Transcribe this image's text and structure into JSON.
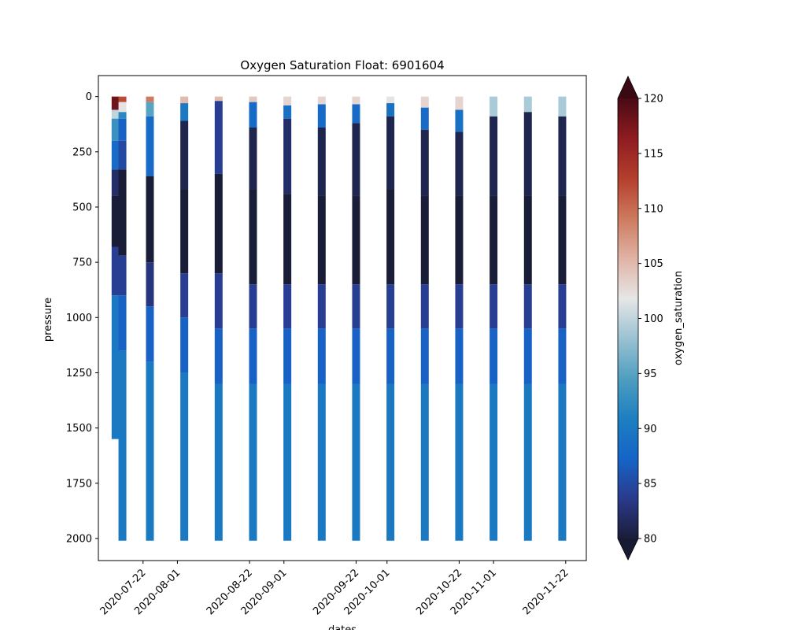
{
  "chart_data": {
    "type": "scatter",
    "title": "Oxygen Saturation Float: 6901604",
    "xlabel": "dates",
    "ylabel": "pressure",
    "x_tick_labels": [
      "2020-07-22",
      "2020-08-01",
      "2020-08-22",
      "2020-09-01",
      "2020-09-22",
      "2020-10-01",
      "2020-10-22",
      "2020-11-01",
      "2020-11-22"
    ],
    "x_tick_dates": [
      "2020-07-22",
      "2020-08-01",
      "2020-08-22",
      "2020-09-01",
      "2020-09-22",
      "2020-10-01",
      "2020-10-22",
      "2020-11-01",
      "2020-11-22"
    ],
    "xlim": [
      "2020-07-09",
      "2020-11-28"
    ],
    "y_tick_labels": [
      "0",
      "250",
      "500",
      "750",
      "1000",
      "1250",
      "1500",
      "1750",
      "2000"
    ],
    "y_ticks": [
      0,
      250,
      500,
      750,
      1000,
      1250,
      1500,
      1750,
      2000
    ],
    "ylim": [
      2100,
      -95
    ],
    "y_inverted": true,
    "grid": false,
    "colorbar": {
      "label": "oxygen_saturation",
      "tick_labels": [
        "80",
        "85",
        "90",
        "95",
        "100",
        "105",
        "110",
        "115",
        "120"
      ],
      "ticks": [
        80,
        85,
        90,
        95,
        100,
        105,
        110,
        115,
        120
      ],
      "range": [
        80,
        120
      ],
      "extend": "both",
      "colormap": [
        "#1a1d37",
        "#2a3a8c",
        "#1565c8",
        "#1d7fc0",
        "#4f9ec0",
        "#9ac2d2",
        "#e6e6e6",
        "#e0b3a5",
        "#cd7a5e",
        "#b43f2c",
        "#8e1c21",
        "#4a0a14"
      ]
    },
    "profiles": [
      {
        "date": "2020-07-14",
        "max_pressure": 1550,
        "segments": [
          [
            0,
            60,
            118
          ],
          [
            60,
            100,
            100
          ],
          [
            100,
            200,
            93
          ],
          [
            200,
            330,
            88
          ],
          [
            330,
            450,
            82
          ],
          [
            450,
            680,
            80
          ],
          [
            680,
            900,
            84
          ],
          [
            900,
            1550,
            90
          ]
        ]
      },
      {
        "date": "2020-07-16",
        "max_pressure": 2010,
        "segments": [
          [
            0,
            25,
            112
          ],
          [
            25,
            70,
            102
          ],
          [
            70,
            100,
            92
          ],
          [
            100,
            200,
            87
          ],
          [
            200,
            330,
            85
          ],
          [
            330,
            720,
            80
          ],
          [
            720,
            900,
            84
          ],
          [
            900,
            1150,
            87
          ],
          [
            1150,
            2010,
            90
          ]
        ]
      },
      {
        "date": "2020-07-24",
        "max_pressure": 2010,
        "segments": [
          [
            0,
            25,
            109
          ],
          [
            25,
            90,
            95
          ],
          [
            90,
            360,
            88
          ],
          [
            360,
            750,
            80
          ],
          [
            750,
            950,
            83
          ],
          [
            950,
            1200,
            87
          ],
          [
            1200,
            2010,
            90
          ]
        ]
      },
      {
        "date": "2020-08-03",
        "max_pressure": 2010,
        "segments": [
          [
            0,
            30,
            105
          ],
          [
            30,
            110,
            90
          ],
          [
            110,
            420,
            81
          ],
          [
            420,
            800,
            80
          ],
          [
            800,
            1000,
            84
          ],
          [
            1000,
            1250,
            87
          ],
          [
            1250,
            2010,
            90
          ]
        ]
      },
      {
        "date": "2020-08-13",
        "max_pressure": 2010,
        "segments": [
          [
            0,
            20,
            105
          ],
          [
            20,
            350,
            84
          ],
          [
            350,
            800,
            80
          ],
          [
            800,
            1050,
            84
          ],
          [
            1050,
            1300,
            87
          ],
          [
            1300,
            2010,
            90
          ]
        ]
      },
      {
        "date": "2020-08-23",
        "max_pressure": 2010,
        "segments": [
          [
            0,
            25,
            104
          ],
          [
            25,
            140,
            88
          ],
          [
            140,
            420,
            81
          ],
          [
            420,
            850,
            80
          ],
          [
            850,
            1050,
            84
          ],
          [
            1050,
            1300,
            87
          ],
          [
            1300,
            2010,
            90
          ]
        ]
      },
      {
        "date": "2020-09-02",
        "max_pressure": 2010,
        "segments": [
          [
            0,
            40,
            103
          ],
          [
            40,
            100,
            89
          ],
          [
            100,
            440,
            82
          ],
          [
            440,
            850,
            80
          ],
          [
            850,
            1050,
            84
          ],
          [
            1050,
            1300,
            87
          ],
          [
            1300,
            2010,
            90
          ]
        ]
      },
      {
        "date": "2020-09-12",
        "max_pressure": 2010,
        "segments": [
          [
            0,
            35,
            103
          ],
          [
            35,
            140,
            88
          ],
          [
            140,
            450,
            81
          ],
          [
            450,
            850,
            80
          ],
          [
            850,
            1050,
            84
          ],
          [
            1050,
            1300,
            87
          ],
          [
            1300,
            2010,
            90
          ]
        ]
      },
      {
        "date": "2020-09-22",
        "max_pressure": 2010,
        "segments": [
          [
            0,
            35,
            103
          ],
          [
            35,
            120,
            88
          ],
          [
            120,
            450,
            81
          ],
          [
            450,
            850,
            80
          ],
          [
            850,
            1050,
            84
          ],
          [
            1050,
            1300,
            87
          ],
          [
            1300,
            2010,
            90
          ]
        ]
      },
      {
        "date": "2020-10-02",
        "max_pressure": 2010,
        "segments": [
          [
            0,
            30,
            102
          ],
          [
            30,
            90,
            89
          ],
          [
            90,
            420,
            81
          ],
          [
            420,
            850,
            80
          ],
          [
            850,
            1050,
            84
          ],
          [
            1050,
            1300,
            87
          ],
          [
            1300,
            2010,
            90
          ]
        ]
      },
      {
        "date": "2020-10-12",
        "max_pressure": 2010,
        "segments": [
          [
            0,
            50,
            103
          ],
          [
            50,
            150,
            88
          ],
          [
            150,
            450,
            81
          ],
          [
            450,
            850,
            80
          ],
          [
            850,
            1050,
            84
          ],
          [
            1050,
            1300,
            87
          ],
          [
            1300,
            2010,
            90
          ]
        ]
      },
      {
        "date": "2020-10-22",
        "max_pressure": 2010,
        "segments": [
          [
            0,
            60,
            103
          ],
          [
            60,
            160,
            89
          ],
          [
            160,
            450,
            81
          ],
          [
            450,
            850,
            80
          ],
          [
            850,
            1050,
            84
          ],
          [
            1050,
            1300,
            87
          ],
          [
            1300,
            2010,
            90
          ]
        ]
      },
      {
        "date": "2020-11-01",
        "max_pressure": 2010,
        "segments": [
          [
            0,
            90,
            99
          ],
          [
            90,
            450,
            81
          ],
          [
            450,
            850,
            80
          ],
          [
            850,
            1050,
            84
          ],
          [
            1050,
            1300,
            87
          ],
          [
            1300,
            2010,
            90
          ]
        ]
      },
      {
        "date": "2020-11-11",
        "max_pressure": 2010,
        "segments": [
          [
            0,
            70,
            99
          ],
          [
            70,
            450,
            81
          ],
          [
            450,
            850,
            80
          ],
          [
            850,
            1050,
            84
          ],
          [
            1050,
            1300,
            87
          ],
          [
            1300,
            2010,
            90
          ]
        ]
      },
      {
        "date": "2020-11-21",
        "max_pressure": 2010,
        "segments": [
          [
            0,
            90,
            99
          ],
          [
            90,
            450,
            81
          ],
          [
            450,
            850,
            80
          ],
          [
            850,
            1050,
            84
          ],
          [
            1050,
            1300,
            87
          ],
          [
            1300,
            2010,
            90
          ]
        ]
      }
    ]
  }
}
